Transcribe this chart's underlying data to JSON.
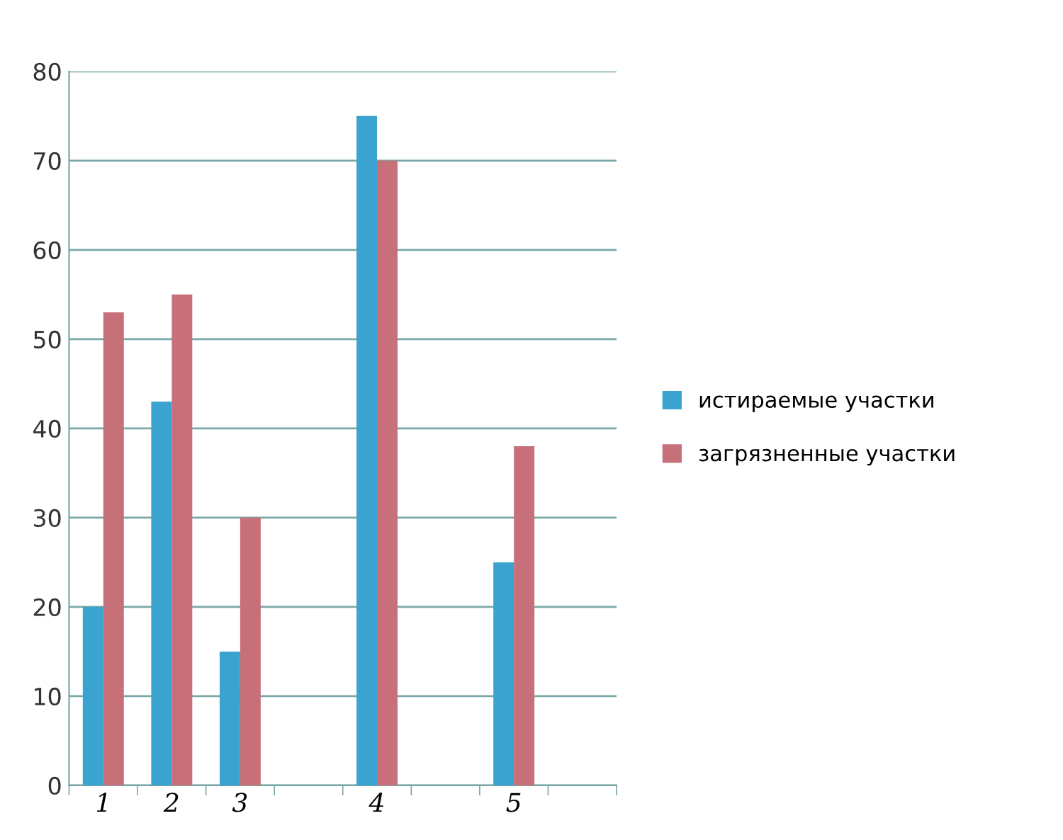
{
  "chart_data": {
    "type": "bar",
    "categories": [
      "1",
      "2",
      "3",
      null,
      "4",
      null,
      "5",
      null
    ],
    "series": [
      {
        "name": "истираемые участки",
        "color": "#3aa3cf",
        "values": [
          20,
          43,
          15,
          null,
          75,
          null,
          25,
          null
        ]
      },
      {
        "name": "загрязненные участки",
        "color": "#c7707a",
        "values": [
          53,
          55,
          30,
          null,
          70,
          null,
          38,
          null
        ]
      }
    ],
    "ylim": [
      0,
      80
    ],
    "yticks": [
      0,
      10,
      20,
      30,
      40,
      50,
      60,
      70,
      80
    ],
    "grid": "y",
    "legend": "right"
  }
}
